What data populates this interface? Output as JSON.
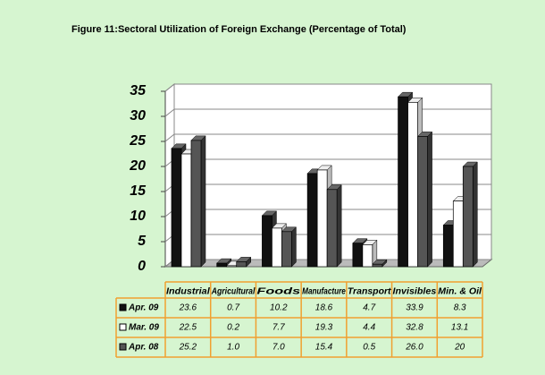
{
  "chart_data": {
    "type": "bar",
    "title": "Figure 11:Sectoral Utilization of Foreign Exchange (Percentage of Total)",
    "categories": [
      "Industrial",
      "Agricultural",
      "Foods",
      "Manufacture",
      "Transport",
      "Invisibles",
      "Min. & Oil"
    ],
    "series": [
      {
        "name": "Apr. 09",
        "color": "#111111",
        "values": [
          23.6,
          0.7,
          10.2,
          18.6,
          4.7,
          33.9,
          8.3
        ]
      },
      {
        "name": "Mar. 09",
        "color": "#ffffff",
        "values": [
          22.5,
          0.2,
          7.7,
          19.3,
          4.4,
          32.8,
          13.1
        ]
      },
      {
        "name": "Apr. 08",
        "color": "#555555",
        "values": [
          25.2,
          1.0,
          7.0,
          15.4,
          0.5,
          26.0,
          20
        ],
        "value_labels": [
          "25.2",
          "1.0",
          "7.0",
          "15.4",
          "0.5",
          "26.0",
          "20"
        ]
      }
    ],
    "ylim": [
      0,
      35
    ],
    "yticks": [
      0,
      5,
      10,
      15,
      20,
      25,
      30,
      35
    ],
    "grid": true
  }
}
